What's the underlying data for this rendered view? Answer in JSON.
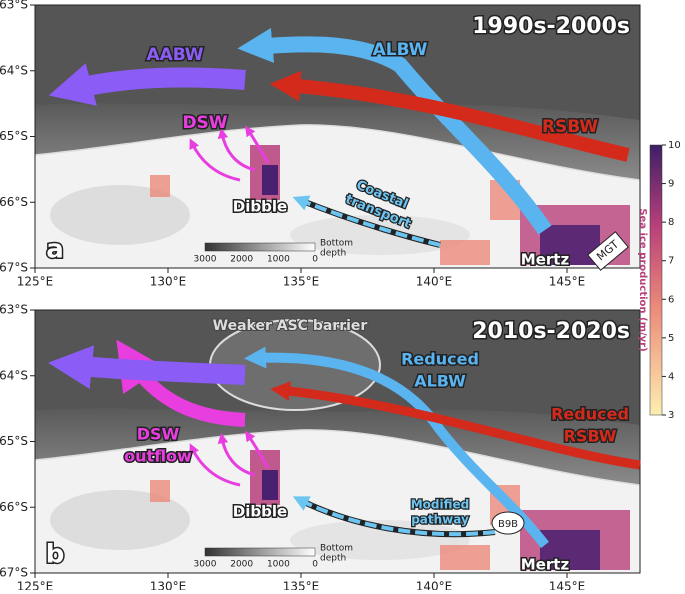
{
  "axes": {
    "lat_ticks": [
      "63°S",
      "64°S",
      "65°S",
      "66°S",
      "67°S"
    ],
    "lon_ticks": [
      "125°E",
      "130°E",
      "135°E",
      "140°E",
      "145°E"
    ]
  },
  "panels": [
    {
      "label": "a",
      "period": "1990s-2000s",
      "aabw": "AABW",
      "albw": "ALBW",
      "dsw": "DSW",
      "rsbw": "RSBW",
      "transport": [
        "Coastal",
        "transport"
      ],
      "dibble": "Dibble",
      "mertz": "Mertz",
      "glacier": "MGT"
    },
    {
      "label": "b",
      "period": "2010s-2020s",
      "barrier": "Weaker ASC barrier",
      "albw": [
        "Reduced",
        "ALBW"
      ],
      "rsbw": [
        "Reduced",
        "RSBW"
      ],
      "dsw": [
        "DSW",
        "outflow"
      ],
      "transport": [
        "Modified",
        "pathway"
      ],
      "dibble": "Dibble",
      "iceberg": "B9B",
      "mertz": "Mertz"
    }
  ],
  "depth_bar": {
    "ticks": [
      3000,
      2000,
      1000,
      0
    ],
    "label": [
      "Bottom",
      "depth"
    ]
  },
  "colorbar": {
    "label": "Sea ice production (m/yr)",
    "ticks": [
      3,
      4,
      5,
      6,
      7,
      8,
      9,
      10
    ]
  }
}
